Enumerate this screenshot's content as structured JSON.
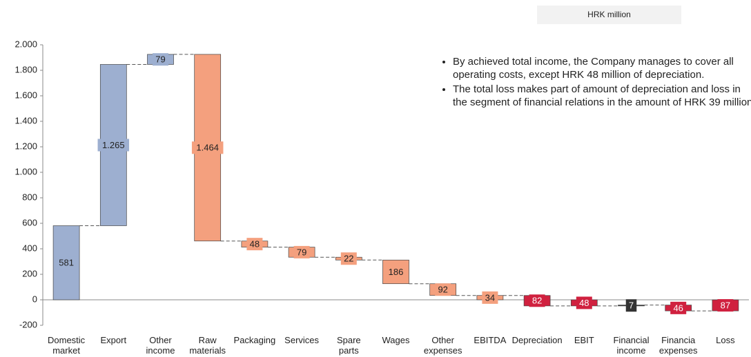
{
  "chart_data": {
    "type": "waterfall",
    "unit_label": "HRK million",
    "notes": [
      "By achieved total income, the Company manages to cover all operating costs, except HRK 48 million of depreciation.",
      "The total loss makes part of amount of depreciation and loss in the segment of financial relations in the amount of HRK 39 million."
    ],
    "categories": [
      "Domestic market",
      "Export",
      "Other income",
      "Raw materials",
      "Packaging",
      "Services",
      "Spare parts",
      "Wages",
      "Other expenses",
      "EBITDA",
      "Depreciation",
      "EBIT",
      "Financial income",
      "Financia expenses",
      "Loss"
    ],
    "values": [
      581,
      1265,
      79,
      1464,
      48,
      79,
      22,
      186,
      92,
      34,
      82,
      48,
      7,
      46,
      87
    ],
    "value_labels": [
      "581",
      "1.265",
      "79",
      "1.464",
      "48",
      "79",
      "22",
      "186",
      "92",
      "34",
      "82",
      "48",
      "7",
      "46",
      "87"
    ],
    "kinds": [
      "up",
      "up",
      "up",
      "down",
      "down",
      "down",
      "down",
      "down",
      "down",
      "total",
      "down",
      "total",
      "up",
      "down",
      "total"
    ],
    "colors": [
      "#9dafd0",
      "#9dafd0",
      "#9dafd0",
      "#f4a07e",
      "#f4a07e",
      "#f4a07e",
      "#f4a07e",
      "#f4a07e",
      "#f4a07e",
      "#f4a07e",
      "#d0213f",
      "#d0213f",
      "#333333",
      "#d0213f",
      "#d0213f"
    ],
    "ylim": [
      -200,
      2000
    ],
    "yticks": [
      {
        "value": -200,
        "label": "-200"
      },
      0,
      200,
      400,
      600,
      800,
      {
        "value": 1000,
        "label": "1.000"
      },
      {
        "value": 1200,
        "label": "1.200"
      },
      {
        "value": 1400,
        "label": "1.400"
      },
      {
        "value": 1600,
        "label": "1.600"
      },
      {
        "value": 1800,
        "label": "1.800"
      },
      {
        "value": 2000,
        "label": "2.000"
      }
    ]
  }
}
